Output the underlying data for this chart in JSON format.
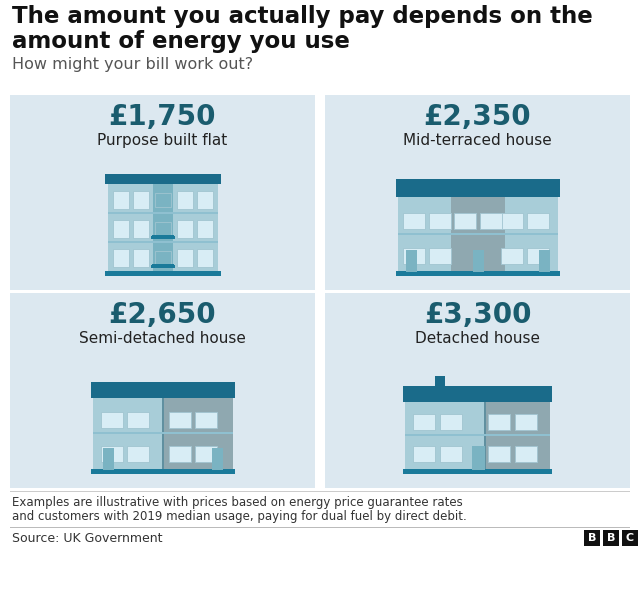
{
  "title_line1": "The amount you actually pay depends on the",
  "title_line2": "amount of energy you use",
  "subtitle": "How might your bill work out?",
  "bg_color": "#ffffff",
  "panel_bg": "#dce8f0",
  "cards": [
    {
      "price": "£1,750",
      "label": "Purpose built flat",
      "type": "flat"
    },
    {
      "price": "£2,350",
      "label": "Mid-terraced house",
      "type": "terraced"
    },
    {
      "price": "£2,650",
      "label": "Semi-detached house",
      "type": "semi"
    },
    {
      "price": "£3,300",
      "label": "Detached house",
      "type": "detached"
    }
  ],
  "price_color": "#1a5c6e",
  "label_color": "#222222",
  "footnote_line1": "Examples are illustrative with prices based on energy price guarantee rates",
  "footnote_line2": "and customers with 2019 median usage, paying for dual fuel by direct debit.",
  "source": "Source: UK Government",
  "col_light": "#a8cdd8",
  "col_mid": "#7ab3c2",
  "col_dark": "#1a7a9a",
  "col_teal": "#1d8ea8",
  "col_roof": "#1a6b8a",
  "col_grey": "#8fa8b0",
  "col_win": "#d8edf5",
  "col_ground": "#1a6b8a"
}
